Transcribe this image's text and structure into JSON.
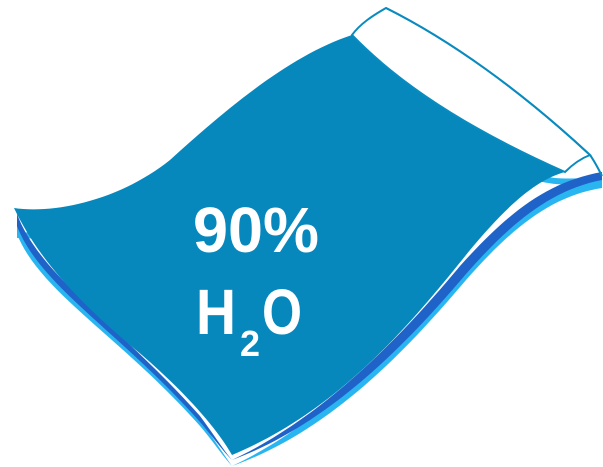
{
  "graphic": {
    "percent_text": "90%",
    "formula_h": "H",
    "formula_subscript": "2",
    "formula_o": "O"
  },
  "colors": {
    "water_fill": "#0688bd",
    "water_fill_dark": "#056f9c",
    "outline": "#0a8bbf",
    "edge_light": "#1ea3e0",
    "edge_mid": "#1f63c9",
    "edge_bright": "#29b6f0",
    "empty_fill": "#ffffff",
    "text": "#ffffff"
  }
}
